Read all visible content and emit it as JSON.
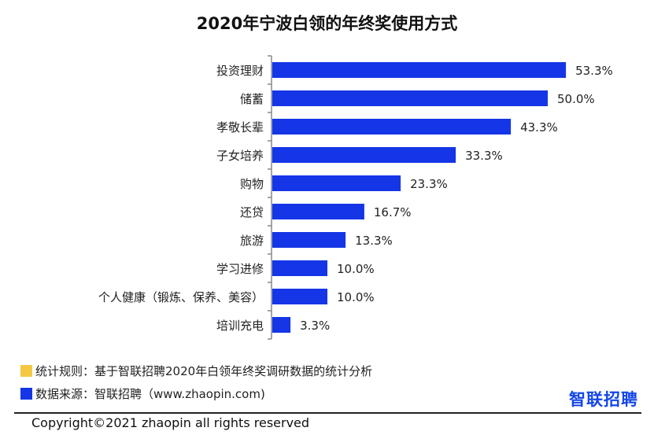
{
  "title": "2020年宁波白领的年终奖使用方式",
  "chart_data": {
    "type": "bar",
    "orientation": "horizontal",
    "categories": [
      "投资理财",
      "储蓄",
      "孝敬长辈",
      "子女培养",
      "购物",
      "还贷",
      "旅游",
      "学习进修",
      "个人健康（锻炼、保养、美容）",
      "培训充电"
    ],
    "values": [
      53.3,
      50.0,
      43.3,
      33.3,
      23.3,
      16.7,
      13.3,
      10.0,
      10.0,
      3.3
    ],
    "value_labels": [
      "53.3%",
      "50.0%",
      "43.3%",
      "33.3%",
      "23.3%",
      "16.7%",
      "13.3%",
      "10.0%",
      "10.0%",
      "3.3%"
    ],
    "xlim": [
      0,
      60
    ],
    "grid": false,
    "bar_color": "#1436e6"
  },
  "notes": {
    "rule": "统计规则：基于智联招聘2020年白领年终奖调研数据的统计分析",
    "rule_color": "#f5c842",
    "source": "数据来源：智联招聘（www.zhaopin.com)",
    "source_color": "#1436e6"
  },
  "logo": "智联招聘",
  "copyright": "Copyright©2021 zhaopin all rights reserved"
}
